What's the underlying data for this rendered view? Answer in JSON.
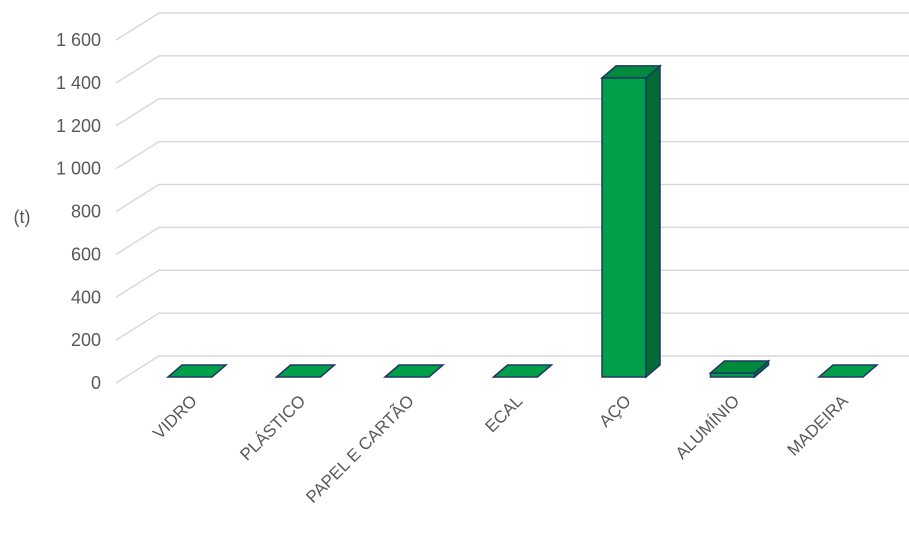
{
  "chart_data": {
    "type": "bar",
    "style": "3d-column",
    "categories": [
      "VIDRO",
      "PLÁSTICO",
      "PAPEL E CARTÃO",
      "ECAL",
      "AÇO",
      "ALUMÍNIO",
      "MADEIRA"
    ],
    "values": [
      0,
      0,
      0,
      0,
      1420,
      15,
      0
    ],
    "ylabel": "(t)",
    "ylim": [
      0,
      1600
    ],
    "yticks": [
      0,
      200,
      400,
      600,
      800,
      1000,
      1200,
      1400,
      1600
    ],
    "ytick_labels": [
      "0",
      "200",
      "400",
      "600",
      "800",
      "1 000",
      "1 200",
      "1 400",
      "1 600"
    ],
    "grid": true,
    "colors": {
      "bar_front": "#00a04a",
      "bar_side": "#006b33",
      "bar_top": "#008a3e",
      "bar_outline": "#1f3864",
      "grid": "#d9d9d9",
      "text": "#595959"
    }
  }
}
